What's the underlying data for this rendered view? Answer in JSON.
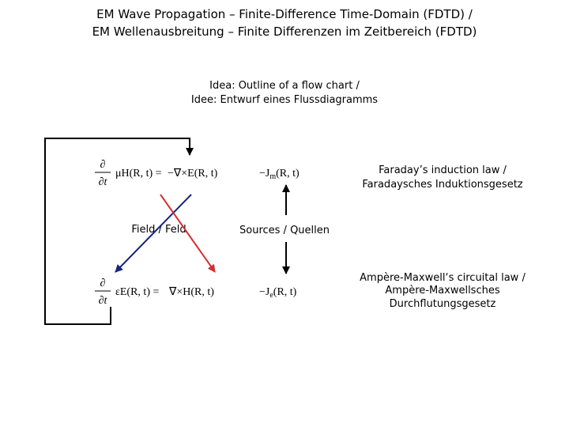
{
  "header": {
    "title_line1": "EM Wave Propagation – Finite-Difference Time-Domain (FDTD) /",
    "title_line2": "EM Wellenausbreitung – Finite Differenzen im Zeitbereich (FDTD)"
  },
  "idea": {
    "line1": "Idea: Outline of a flow chart /",
    "line2": "Idee: Entwurf eines Flussdiagramms"
  },
  "faraday": {
    "d_num": "∂",
    "d_den": "∂t",
    "lhs": "μH(R, t) =",
    "rhs": "−∇×E(R, t)",
    "source_symbol": "−J",
    "source_subscript": "m",
    "source_args": "(R, t)",
    "label_line1": "Faraday’s induction law /",
    "label_line2": "Faradaysches Induktionsgesetz"
  },
  "ampere": {
    "d_num": "∂",
    "d_den": "∂t",
    "lhs": "εE(R, t) =",
    "rhs": "∇×H(R, t)",
    "source_symbol": "−J",
    "source_subscript": "e",
    "source_args": "(R, t)",
    "label_line1": "Ampère-Maxwell‘s circuital law /",
    "label_line2": "Ampère-Maxwellsches",
    "label_line3": "Durchflutungsgesetz"
  },
  "field_label": "Field / Feld",
  "sources_label": "Sources / Quellen"
}
